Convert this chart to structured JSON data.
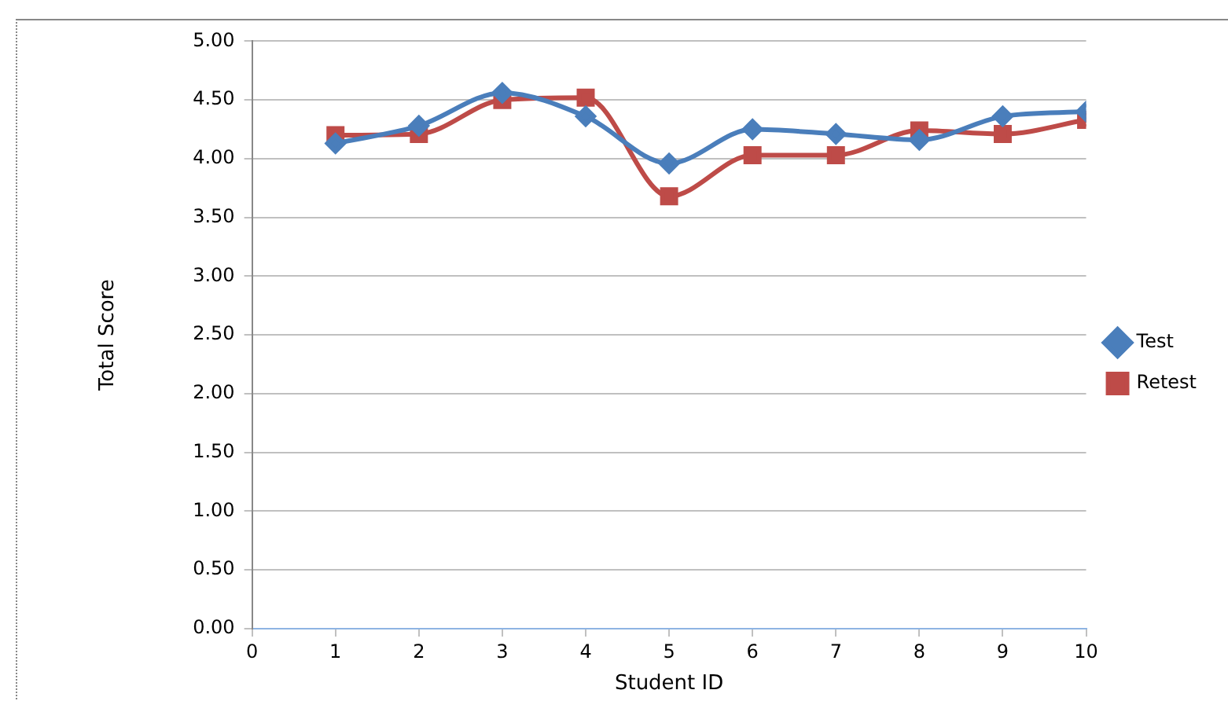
{
  "chart_data": {
    "type": "line",
    "xlabel": "Student ID",
    "ylabel": "Total Score",
    "x": [
      1,
      2,
      3,
      4,
      5,
      6,
      7,
      8,
      9,
      10
    ],
    "xlim": [
      0,
      10
    ],
    "xticks": [
      0,
      1,
      2,
      3,
      4,
      5,
      6,
      7,
      8,
      9,
      10
    ],
    "ylim": [
      0,
      5
    ],
    "yticks": [
      {
        "value": 0,
        "label": "0.00"
      },
      {
        "value": 0.5,
        "label": "0.50"
      },
      {
        "value": 1,
        "label": "1.00"
      },
      {
        "value": 1.5,
        "label": "1.50"
      },
      {
        "value": 2,
        "label": "2.00"
      },
      {
        "value": 2.5,
        "label": "2.50"
      },
      {
        "value": 3,
        "label": "3.00"
      },
      {
        "value": 3.5,
        "label": "3.50"
      },
      {
        "value": 4,
        "label": "4.00"
      },
      {
        "value": 4.5,
        "label": "4.50"
      },
      {
        "value": 5,
        "label": "5.00"
      }
    ],
    "grid": "y",
    "legend": "right",
    "series": [
      {
        "name": "Test",
        "color": "#4a7ebb",
        "marker": "diamond",
        "values": [
          4.13,
          4.28,
          4.56,
          4.36,
          3.96,
          4.25,
          4.21,
          4.16,
          4.36,
          4.4
        ]
      },
      {
        "name": "Retest",
        "color": "#be4b48",
        "marker": "square",
        "values": [
          4.2,
          4.21,
          4.5,
          4.52,
          3.68,
          4.03,
          4.03,
          4.24,
          4.21,
          4.33
        ]
      }
    ]
  }
}
